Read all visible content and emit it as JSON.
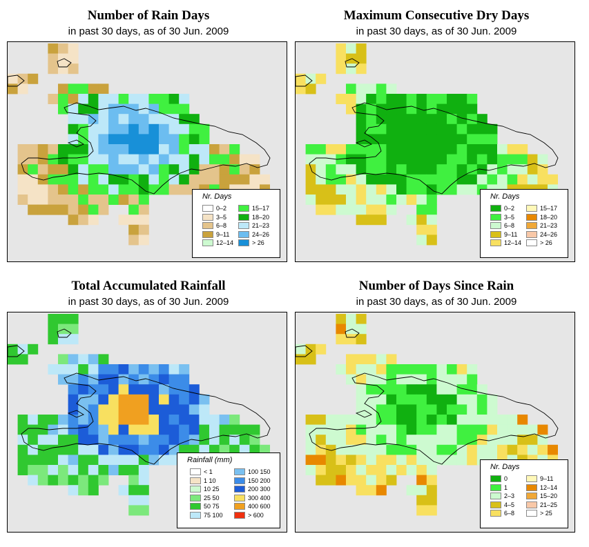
{
  "panels": [
    {
      "id": "rain-days",
      "title": "Number of Rain Days",
      "subtitle": "in past 30 days, as of  30 Jun. 2009",
      "legend_title": "Nr. Days",
      "legend": [
        {
          "label": "0–2",
          "color": "#ffffff"
        },
        {
          "label": "3–5",
          "color": "#f5e3c6"
        },
        {
          "label": "6–8",
          "color": "#e4c48c"
        },
        {
          "label": "9–11",
          "color": "#c9a23d"
        },
        {
          "label": "12–14",
          "color": "#cdfad0"
        },
        {
          "label": "15–17",
          "color": "#40f040"
        },
        {
          "label": "18–20",
          "color": "#10b010"
        },
        {
          "label": "21–23",
          "color": "#bde8f8"
        },
        {
          "label": "24–26",
          "color": "#6cbdf0"
        },
        {
          "label": "> 26",
          "color": "#1890d8"
        }
      ]
    },
    {
      "id": "dry-days",
      "title": "Maximum Consecutive Dry Days",
      "subtitle": "in past 30 days, as of  30 Jun. 2009",
      "legend_title": "Nr. Days",
      "legend": [
        {
          "label": "0–2",
          "color": "#10b010"
        },
        {
          "label": "3–5",
          "color": "#40f040"
        },
        {
          "label": "6–8",
          "color": "#cdfad0"
        },
        {
          "label": "9–11",
          "color": "#d8c018"
        },
        {
          "label": "12–14",
          "color": "#f8e060"
        },
        {
          "label": "15–17",
          "color": "#fff8b8"
        },
        {
          "label": "18–20",
          "color": "#e88800"
        },
        {
          "label": "21–23",
          "color": "#f0a838"
        },
        {
          "label": "24–26",
          "color": "#f8c8a8"
        },
        {
          "label": "> 26",
          "color": "#ffffff"
        }
      ]
    },
    {
      "id": "rainfall",
      "title": "Total Accumulated Rainfall",
      "subtitle": "in past 30 days, as of  30 Jun. 2009",
      "legend_title": "Rainfall (mm)",
      "legend": [
        {
          "label": "< 1",
          "color": "#ffffff"
        },
        {
          "label": "1   10",
          "color": "#f5e3c6"
        },
        {
          "label": "10   25",
          "color": "#cdfad0"
        },
        {
          "label": "25   50",
          "color": "#7ce87c"
        },
        {
          "label": "50   75",
          "color": "#30c830"
        },
        {
          "label": "75  100",
          "color": "#bde8f8"
        },
        {
          "label": "100  150",
          "color": "#7ac0f0"
        },
        {
          "label": "150  200",
          "color": "#3c8ce8"
        },
        {
          "label": "200  300",
          "color": "#1c5cd8"
        },
        {
          "label": "300  400",
          "color": "#f8e060"
        },
        {
          "label": "400  600",
          "color": "#f0a020"
        },
        {
          "label": "> 600",
          "color": "#f03010"
        }
      ]
    },
    {
      "id": "since-rain",
      "title": "Number of Days Since Rain",
      "subtitle": "in past 30 days, as of  30 Jun. 2009",
      "legend_title": "Nr. Days",
      "legend": [
        {
          "label": "0",
          "color": "#10b010"
        },
        {
          "label": "1",
          "color": "#40f040"
        },
        {
          "label": "2–3",
          "color": "#cdfad0"
        },
        {
          "label": "4–5",
          "color": "#d8c018"
        },
        {
          "label": "6–8",
          "color": "#f8e060"
        },
        {
          "label": "9–11",
          "color": "#fff8b8"
        },
        {
          "label": "12–14",
          "color": "#e88800"
        },
        {
          "label": "15–20",
          "color": "#f0a838"
        },
        {
          "label": "21–25",
          "color": "#f8c8a8"
        },
        {
          "label": "> 25",
          "color": "#ffffff"
        }
      ]
    }
  ]
}
